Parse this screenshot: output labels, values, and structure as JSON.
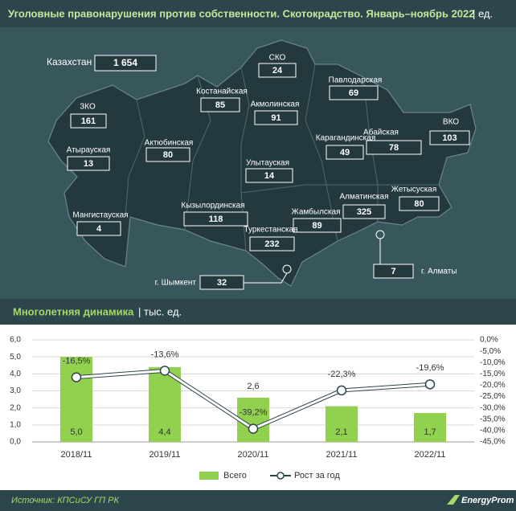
{
  "header": {
    "title": "Уголовные правонарушения против собственности. Скотокрадство. Январь–ноябрь 2022",
    "unit": "| ед."
  },
  "map": {
    "total": {
      "name": "Казахстан",
      "value": 1654,
      "value_label": "1 654"
    },
    "regions": [
      {
        "name": "СКО",
        "value": 24
      },
      {
        "name": "Павлодарская",
        "value": 69
      },
      {
        "name": "Костанайская",
        "value": 85
      },
      {
        "name": "Акмолинская",
        "value": 91
      },
      {
        "name": "ЗКО",
        "value": 161
      },
      {
        "name": "ВКО",
        "value": 103
      },
      {
        "name": "Абайская",
        "value": 78
      },
      {
        "name": "Карагандинская",
        "value": 49
      },
      {
        "name": "Актюбинская",
        "value": 80
      },
      {
        "name": "Атырауская",
        "value": 13
      },
      {
        "name": "Улытауская",
        "value": 14
      },
      {
        "name": "Жетысуская",
        "value": 80
      },
      {
        "name": "Алматинская",
        "value": 325
      },
      {
        "name": "Кызылординская",
        "value": 118
      },
      {
        "name": "Мангистауская",
        "value": 4
      },
      {
        "name": "Жамбылская",
        "value": 89
      },
      {
        "name": "Туркестанская",
        "value": 232
      },
      {
        "name": "г. Алматы",
        "value": 7
      },
      {
        "name": "г. Шымкент",
        "value": 32
      }
    ]
  },
  "chart_data": {
    "type": "bar-line",
    "title": "Многолетняя динамика",
    "unit": "| тыс. ед.",
    "categories": [
      "2018/11",
      "2019/11",
      "2020/11",
      "2021/11",
      "2022/11"
    ],
    "series": [
      {
        "name": "Всего",
        "type": "bar",
        "color": "#92d050",
        "values": [
          5.0,
          4.4,
          2.6,
          2.1,
          1.7
        ],
        "value_labels": [
          "5,0",
          "4,4",
          "2,6",
          "2,1",
          "1,7"
        ]
      },
      {
        "name": "Рост за год",
        "type": "line",
        "axis": "y2",
        "color": "#ffffff",
        "values": [
          -16.5,
          -13.6,
          -39.2,
          -22.3,
          -19.6
        ],
        "value_labels": [
          "-16,5%",
          "-13,6%",
          "-39,2%",
          "-22,3%",
          "-19,6%"
        ]
      }
    ],
    "ylim": [
      0,
      6
    ],
    "yticks": [
      {
        "value": 0,
        "label": "0,0"
      },
      {
        "value": 1,
        "label": "1,0"
      },
      {
        "value": 2,
        "label": "2,0"
      },
      {
        "value": 3,
        "label": "3,0"
      },
      {
        "value": 4,
        "label": "4,0"
      },
      {
        "value": 5,
        "label": "5,0"
      },
      {
        "value": 6,
        "label": "6,0"
      }
    ],
    "y2lim": [
      -45,
      0
    ],
    "y2ticks": [
      {
        "value": 0,
        "label": "0,0%"
      },
      {
        "value": -5,
        "label": "-5,0%"
      },
      {
        "value": -10,
        "label": "-10,0%"
      },
      {
        "value": -15,
        "label": "-15,0%"
      },
      {
        "value": -20,
        "label": "-20,0%"
      },
      {
        "value": -25,
        "label": "-25,0%"
      },
      {
        "value": -30,
        "label": "-30,0%"
      },
      {
        "value": -35,
        "label": "-35,0%"
      },
      {
        "value": -40,
        "label": "-40,0%"
      },
      {
        "value": -45,
        "label": "-45,0%"
      }
    ],
    "grid": true,
    "legend": "bottom"
  },
  "footer": {
    "source": "Источник: КПСиСУ ГП РК",
    "logo": "EnergyProm"
  }
}
